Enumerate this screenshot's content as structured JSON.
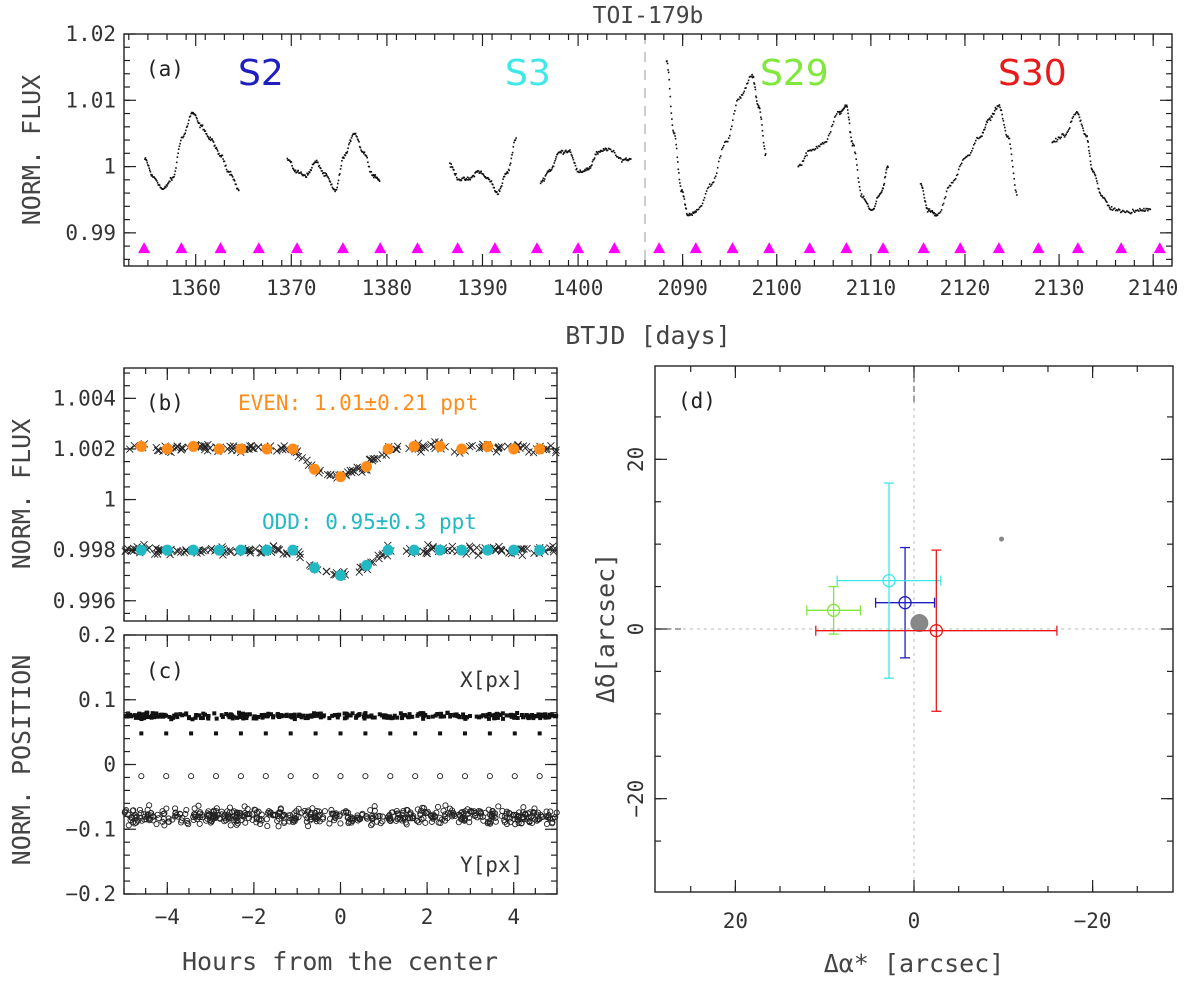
{
  "title": "TOI-179b",
  "colors": {
    "S2": "#1f1fbf",
    "S3": "#3ee8e8",
    "S29": "#7fe83a",
    "S30": "#e81a1a",
    "markers": "#ff00ff",
    "even": "#ff8c1a",
    "odd": "#22b8c4",
    "data": "#111111",
    "center": "#888888"
  },
  "chart_data": [
    {
      "panel": "a",
      "type": "scatter",
      "title": "TOI-179b",
      "xlabel": "BTJD [days]",
      "ylabel": "NORM. FLUX",
      "ylim": [
        0.985,
        1.02
      ],
      "yticks": [
        0.99,
        1,
        1.01,
        1.02
      ],
      "ytick_labels": [
        "0.99",
        "1",
        "1.01",
        "1.02"
      ],
      "broken_axis": true,
      "segments": [
        {
          "xlim": [
            1352.5,
            1407
          ],
          "xticks": [
            1360,
            1370,
            1380,
            1390,
            1400
          ],
          "xtick_labels": [
            "1360",
            "1370",
            "1380",
            "1390",
            "1400"
          ]
        },
        {
          "xlim": [
            2086,
            2142
          ],
          "xticks": [
            2090,
            2100,
            2110,
            2120,
            2130,
            2140
          ],
          "xtick_labels": [
            "2090",
            "2100",
            "2110",
            "2120",
            "2130",
            "2140"
          ]
        }
      ],
      "sector_labels": [
        {
          "text": "S2",
          "color_key": "S2"
        },
        {
          "text": "S3",
          "color_key": "S3"
        },
        {
          "text": "S29",
          "color_key": "S29"
        },
        {
          "text": "S30",
          "color_key": "S30"
        }
      ],
      "transit_marker_y": 0.9877,
      "transit_times_seg1": [
        1354.6,
        1358.5,
        1362.6,
        1366.6,
        1370.6,
        1375.4,
        1379.3,
        1383.2,
        1387.4,
        1391.3,
        1395.7,
        1400.0,
        1403.8
      ],
      "transit_times_seg2": [
        2087.5,
        2091.4,
        2095.3,
        2099.2,
        2103.5,
        2107.4,
        2111.3,
        2115.6,
        2119.5,
        2123.6,
        2127.8,
        2132.0,
        2136.6,
        2140.7
      ],
      "lightcurves": [
        {
          "sector": "S2",
          "x": [
            1354.6,
            1355.5,
            1356.5,
            1357.5,
            1358.5,
            1359.6,
            1360.5,
            1361.5,
            1362.5,
            1363.5,
            1364.5
          ],
          "y": [
            1.0012,
            0.9985,
            0.9967,
            0.9983,
            1.0045,
            1.0082,
            1.0062,
            1.0042,
            1.0018,
            0.9992,
            0.9965
          ]
        },
        {
          "sector": "S2",
          "x": [
            1369.5,
            1370.5,
            1371.5,
            1372.5,
            1373.5,
            1374.5,
            1375.5,
            1376.5,
            1377.5,
            1378.5,
            1379.2
          ],
          "y": [
            1.0012,
            0.9993,
            0.9988,
            1.0008,
            0.9988,
            0.9965,
            1.0018,
            1.0052,
            1.0022,
            0.9988,
            0.9981
          ]
        },
        {
          "sector": "S3",
          "x": [
            1386.5,
            1387.5,
            1388.5,
            1389.5,
            1390.5,
            1391.5,
            1392.5,
            1393.5
          ],
          "y": [
            1.0003,
            0.9982,
            0.9982,
            0.9994,
            0.9983,
            0.9962,
            0.9992,
            1.0045
          ]
        },
        {
          "sector": "S3",
          "x": [
            1396.0,
            1397.0,
            1398.0,
            1399.0,
            1400.0,
            1401.0,
            1402.0,
            1403.0,
            1404.5,
            1405.5
          ],
          "y": [
            0.9978,
            0.9996,
            1.0023,
            1.0025,
            0.9992,
            0.9998,
            1.0022,
            1.0028,
            1.0012,
            1.0012
          ]
        },
        {
          "sector": "S29",
          "x": [
            2088.2,
            2089.0,
            2089.8,
            2090.5,
            2091.5,
            2093.0,
            2094.5,
            2096.0,
            2097.3,
            2098.0,
            2098.8
          ],
          "y": [
            1.0162,
            1.0052,
            0.9965,
            0.9928,
            0.9935,
            0.9975,
            1.0038,
            1.0105,
            1.0138,
            1.0092,
            1.0018
          ]
        },
        {
          "sector": "S29",
          "x": [
            2102.2,
            2103.5,
            2105.0,
            2106.5,
            2107.3,
            2108.0,
            2109.0,
            2110.0,
            2111.0,
            2111.8
          ],
          "y": [
            1.0002,
            1.0025,
            1.0038,
            1.0082,
            1.0092,
            1.0035,
            0.9955,
            0.9935,
            0.9962,
            1.0002
          ]
        },
        {
          "sector": "S29",
          "x": [
            2115.2,
            2116.0,
            2117.0,
            2118.5,
            2120.0,
            2121.5,
            2122.5,
            2123.5,
            2124.5,
            2125.5
          ],
          "y": [
            0.9975,
            0.9935,
            0.9928,
            0.9975,
            1.0015,
            1.0045,
            1.0072,
            1.0093,
            1.0045,
            0.9958
          ]
        },
        {
          "sector": "S30",
          "x": [
            2129.2,
            2130.5,
            2131.8,
            2132.8,
            2133.5,
            2134.5,
            2135.5,
            2137.0,
            2138.5,
            2139.7
          ],
          "y": [
            1.0038,
            1.0048,
            1.0082,
            1.0048,
            0.9995,
            0.9955,
            0.9938,
            0.9932,
            0.9935,
            0.9938
          ]
        }
      ],
      "annotation": "(a)"
    },
    {
      "panel": "b",
      "type": "scatter",
      "xlabel": "",
      "ylabel": "NORM. FLUX",
      "xlim": [
        -5,
        5
      ],
      "ylim": [
        0.9952,
        1.0052
      ],
      "yticks": [
        0.996,
        0.998,
        1.0,
        1.002,
        1.004
      ],
      "ytick_labels": [
        "0.996",
        "0.998",
        "1",
        "1.002",
        "1.004"
      ],
      "even_label": "EVEN: 1.01±0.21 ppt",
      "odd_label": "ODD: 0.95±0.3 ppt",
      "even_binned": {
        "x": [
          -4.6,
          -4.0,
          -3.4,
          -2.8,
          -2.3,
          -1.7,
          -1.1,
          -0.6,
          0.0,
          0.6,
          1.1,
          1.7,
          2.3,
          2.8,
          3.4,
          4.0,
          4.6
        ],
        "y": [
          1.0021,
          1.002,
          1.0021,
          1.002,
          1.002,
          1.002,
          1.002,
          1.0012,
          1.0009,
          1.0013,
          1.002,
          1.0021,
          1.0021,
          1.002,
          1.0021,
          1.002,
          1.002
        ]
      },
      "odd_binned": {
        "x": [
          -4.6,
          -4.0,
          -3.4,
          -2.8,
          -2.3,
          -1.7,
          -1.1,
          -0.6,
          0.0,
          0.6,
          1.1,
          1.7,
          2.3,
          2.8,
          3.4,
          4.0,
          4.6
        ],
        "y": [
          0.998,
          0.998,
          0.998,
          0.998,
          0.998,
          0.998,
          0.998,
          0.9973,
          0.997,
          0.9974,
          0.998,
          0.998,
          0.998,
          0.998,
          0.998,
          0.998,
          0.998
        ]
      },
      "annotation": "(b)"
    },
    {
      "panel": "c",
      "type": "scatter",
      "xlabel": "Hours from the center",
      "ylabel": "NORM. POSITION",
      "xlim": [
        -5,
        5
      ],
      "ylim": [
        -0.2,
        0.2
      ],
      "xticks": [
        -4,
        -2,
        0,
        2,
        4
      ],
      "xtick_labels": [
        "−4",
        "−2",
        "0",
        "2",
        "4"
      ],
      "yticks": [
        -0.2,
        -0.1,
        0,
        0.1,
        0.2
      ],
      "ytick_labels": [
        "−0.2",
        "−0.1",
        "0",
        "0.1",
        "0.2"
      ],
      "x_series_label": "X[px]",
      "y_series_label": "Y[px]",
      "x_mean": 0.075,
      "y_mean": -0.08,
      "annotation": "(c)"
    },
    {
      "panel": "d",
      "type": "scatter",
      "xlabel": "Δα* [arcsec]",
      "ylabel": "Δδ[arcsec]",
      "xlim": [
        29,
        -29
      ],
      "ylim": [
        -31,
        31
      ],
      "xticks": [
        20,
        0,
        -20
      ],
      "xtick_labels": [
        "20",
        "0",
        "−20"
      ],
      "yticks": [
        -20,
        0,
        20
      ],
      "ytick_labels": [
        "−20",
        "0",
        "20"
      ],
      "points": [
        {
          "sector": "S2",
          "color_key": "S2",
          "x": 1.0,
          "y": 3.1,
          "xerr": 3.3,
          "yerr": 6.5
        },
        {
          "sector": "S3",
          "color_key": "S3",
          "x": 2.8,
          "y": 5.7,
          "xerr": 5.8,
          "yerr": 11.5
        },
        {
          "sector": "S29",
          "color_key": "S29",
          "x": 9.0,
          "y": 2.2,
          "xerr": 3.0,
          "yerr": 2.8
        },
        {
          "sector": "S30",
          "color_key": "S30",
          "x": -2.5,
          "y": -0.2,
          "xerr": 13.5,
          "yerr": 9.5
        }
      ],
      "center_point": {
        "x": -0.6,
        "y": 0.7
      },
      "small_point": {
        "x": -9.8,
        "y": 10.6
      },
      "annotation": "(d)"
    }
  ]
}
